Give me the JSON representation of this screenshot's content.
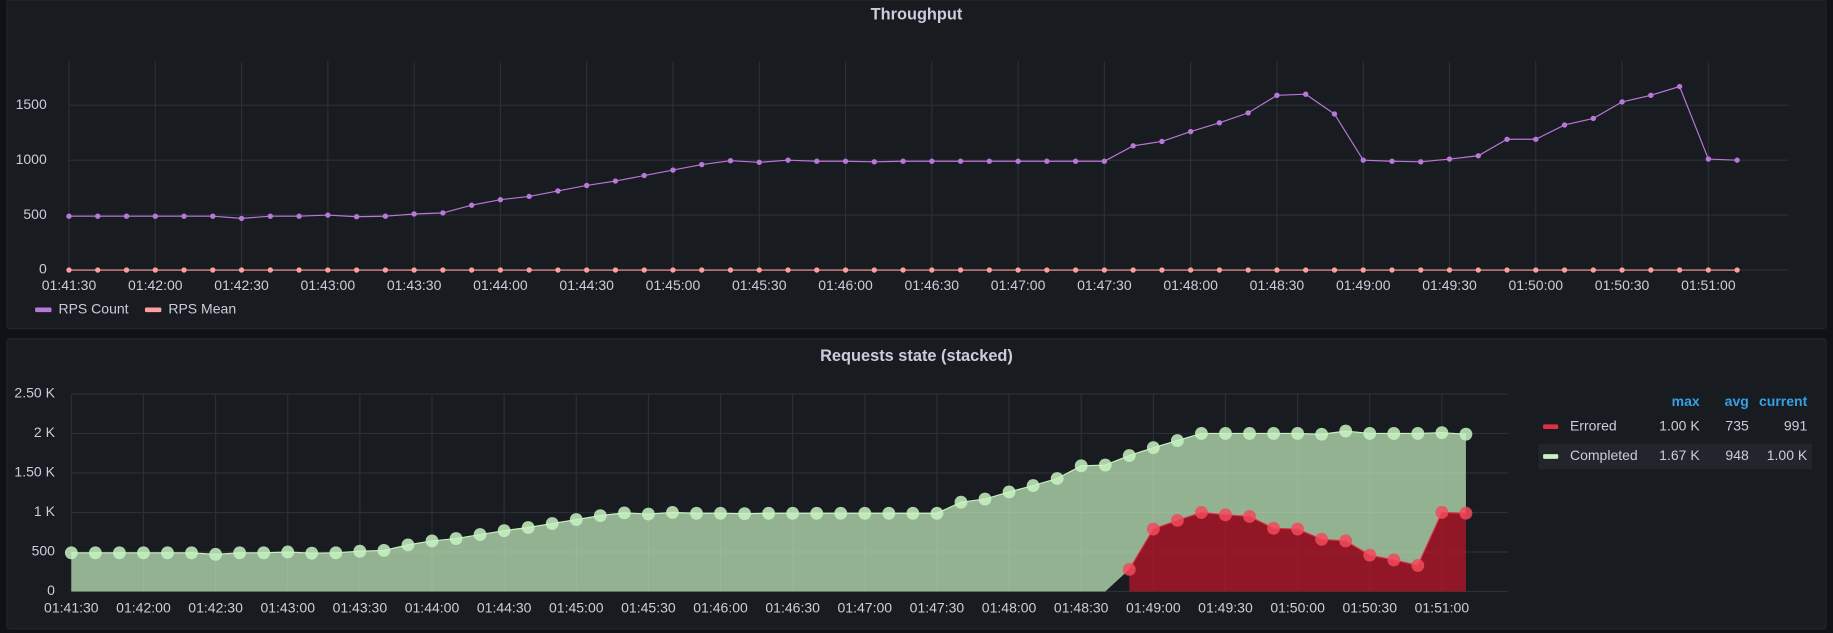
{
  "chart_data": [
    {
      "type": "line",
      "title": "Throughput",
      "categories": [
        "01:41:30",
        null,
        null,
        "01:42:00",
        null,
        null,
        "01:42:30",
        null,
        null,
        "01:43:00",
        null,
        null,
        "01:43:30",
        null,
        null,
        "01:44:00",
        null,
        null,
        "01:44:30",
        null,
        null,
        "01:45:00",
        null,
        null,
        "01:45:30",
        null,
        null,
        "01:46:00",
        null,
        null,
        "01:46:30",
        null,
        null,
        "01:47:00",
        null,
        null,
        "01:47:30",
        null,
        null,
        "01:48:00",
        null,
        null,
        "01:48:30",
        null,
        null,
        "01:49:00",
        null,
        null,
        "01:49:30",
        null,
        null,
        "01:50:00",
        null,
        null,
        "01:50:30",
        null,
        null,
        "01:51:00",
        null
      ],
      "series": [
        {
          "name": "RPS Count",
          "color": "#b877d9",
          "values": [
            490,
            490,
            490,
            490,
            490,
            490,
            470,
            490,
            490,
            500,
            485,
            490,
            510,
            520,
            590,
            640,
            670,
            720,
            770,
            810,
            860,
            910,
            960,
            995,
            980,
            1000,
            990,
            990,
            985,
            990,
            990,
            990,
            990,
            990,
            990,
            990,
            990,
            1130,
            1170,
            1260,
            1340,
            1430,
            1590,
            1600,
            1420,
            1000,
            990,
            985,
            1010,
            1040,
            1190,
            1190,
            1320,
            1380,
            1530,
            1590,
            1670,
            1010,
            1000
          ]
        },
        {
          "name": "RPS Mean",
          "color": "#ff9e9e",
          "values": [
            0,
            0,
            0,
            0,
            0,
            0,
            0,
            0,
            0,
            0,
            0,
            0,
            0,
            0,
            0,
            0,
            0,
            0,
            0,
            0,
            0,
            0,
            0,
            0,
            0,
            0,
            0,
            0,
            0,
            0,
            0,
            0,
            0,
            0,
            0,
            0,
            0,
            0,
            0,
            0,
            0,
            0,
            0,
            0,
            0,
            0,
            0,
            0,
            0,
            0,
            0,
            0,
            0,
            0,
            0,
            0,
            0,
            0,
            0
          ]
        }
      ],
      "ylim": [
        0,
        1900
      ],
      "yticks": [
        0,
        500,
        1000,
        1500
      ],
      "grid": true,
      "legend": "bottom-left"
    },
    {
      "type": "area",
      "title": "Requests state (stacked)",
      "stacked": true,
      "categories": [
        "01:41:30",
        null,
        null,
        "01:42:00",
        null,
        null,
        "01:42:30",
        null,
        null,
        "01:43:00",
        null,
        null,
        "01:43:30",
        null,
        null,
        "01:44:00",
        null,
        null,
        "01:44:30",
        null,
        null,
        "01:45:00",
        null,
        null,
        "01:45:30",
        null,
        null,
        "01:46:00",
        null,
        null,
        "01:46:30",
        null,
        null,
        "01:47:00",
        null,
        null,
        "01:47:30",
        null,
        null,
        "01:48:00",
        null,
        null,
        "01:48:30",
        null,
        null,
        "01:49:00",
        null,
        null,
        "01:49:30",
        null,
        null,
        "01:50:00",
        null,
        null,
        "01:50:30",
        null,
        null,
        "01:51:00",
        null
      ],
      "series": [
        {
          "name": "Errored",
          "color": "#c4162a",
          "values": [
            null,
            null,
            null,
            null,
            null,
            null,
            null,
            null,
            null,
            null,
            null,
            null,
            null,
            null,
            null,
            null,
            null,
            null,
            null,
            null,
            null,
            null,
            null,
            null,
            null,
            null,
            null,
            null,
            null,
            null,
            null,
            null,
            null,
            null,
            null,
            null,
            null,
            null,
            null,
            null,
            null,
            null,
            null,
            null,
            280,
            790,
            900,
            1000,
            970,
            950,
            800,
            790,
            660,
            640,
            460,
            400,
            330,
            1000,
            991
          ],
          "legend_values": [
            1000,
            735,
            991
          ],
          "legend_value_labels": [
            "1.00 K",
            "735",
            "991"
          ]
        },
        {
          "name": "Completed",
          "color": "#c8f2c2",
          "values": [
            490,
            490,
            490,
            490,
            490,
            490,
            470,
            490,
            490,
            500,
            485,
            490,
            510,
            520,
            590,
            640,
            670,
            720,
            770,
            810,
            860,
            910,
            960,
            995,
            980,
            1000,
            990,
            990,
            985,
            990,
            990,
            990,
            990,
            990,
            990,
            990,
            990,
            1130,
            1170,
            1260,
            1340,
            1430,
            1590,
            1600,
            1440,
            1030,
            1010,
            1000,
            1030,
            1050,
            1200,
            1210,
            1330,
            1390,
            1540,
            1600,
            1670,
            1010,
            1000
          ],
          "legend_values": [
            1670,
            948,
            1000
          ],
          "legend_value_labels": [
            "1.67 K",
            "948",
            "1.00 K"
          ]
        }
      ],
      "ylim": [
        0,
        2500
      ],
      "yticks": [
        0,
        500,
        {
          "value": 1000,
          "label": "1 K"
        },
        {
          "value": 1500,
          "label": "1.50 K"
        },
        {
          "value": 2000,
          "label": "2 K"
        },
        {
          "value": 2500,
          "label": "2.50 K"
        }
      ],
      "grid": true,
      "legend": "right",
      "legend_columns": [
        "max",
        "avg",
        "current"
      ]
    }
  ]
}
